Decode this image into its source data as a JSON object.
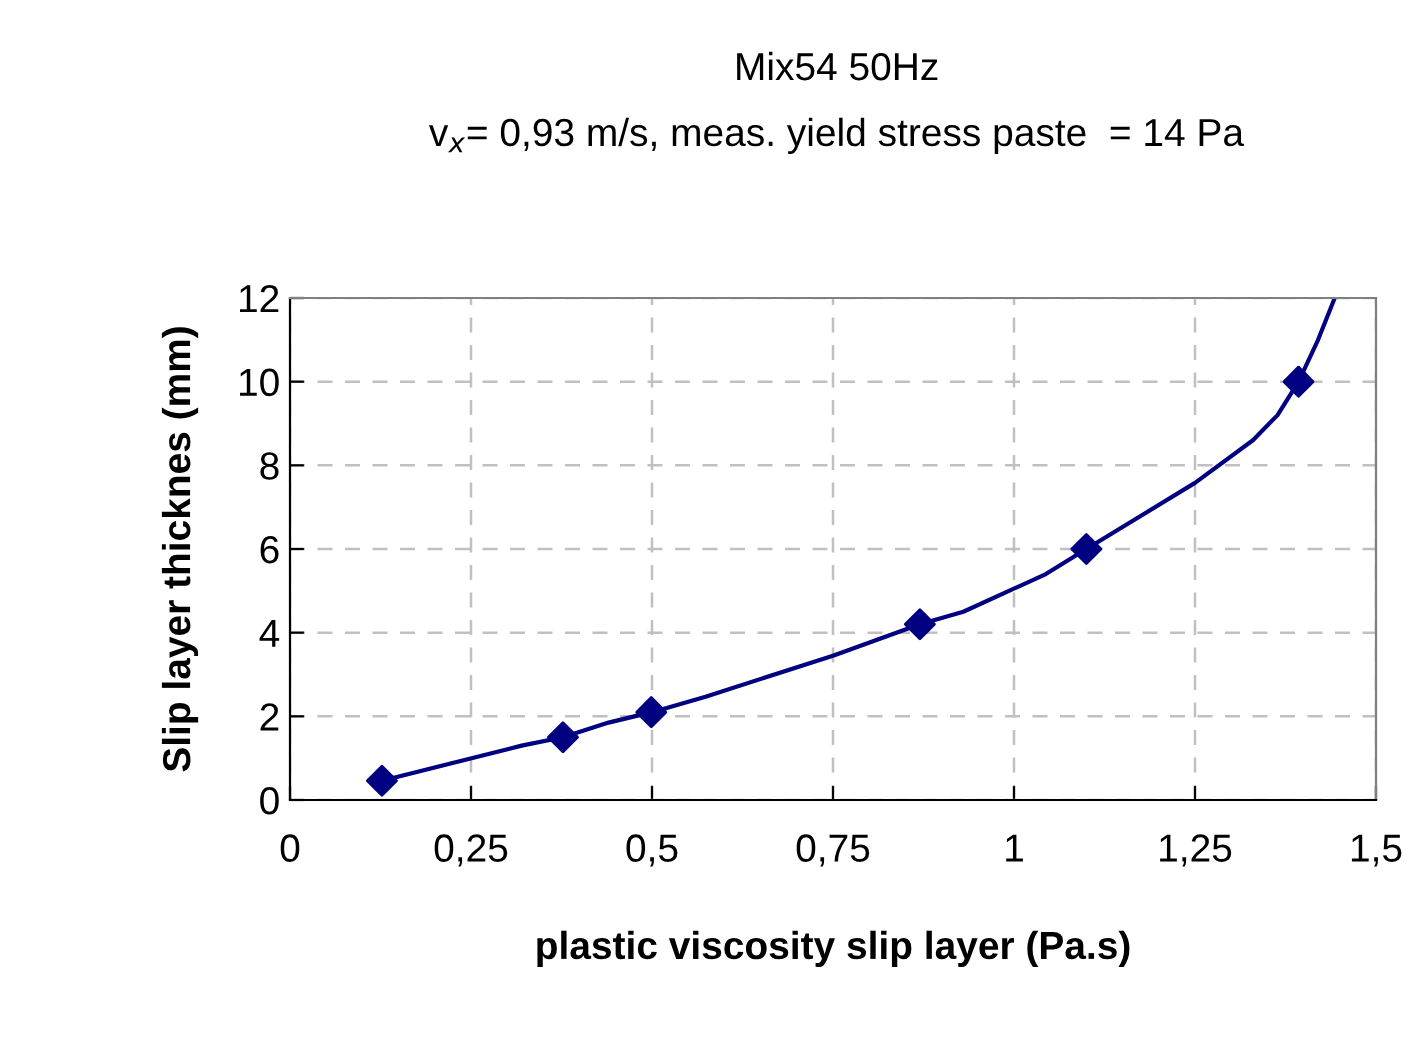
{
  "chart_data": {
    "type": "line",
    "title": "Mix54 50Hz",
    "subtitle": "v$_{x}$= 0,93 m/s, meas. yield stress paste  = 14 Pa",
    "xlabel": "plastic viscosity slip layer (Pa.s)",
    "ylabel": "Slip layer thicknes (mm)",
    "series": [
      {
        "type": "scatter",
        "color": "#000080",
        "marker": "diamond",
        "x": [
          0.127,
          0.377,
          0.499,
          0.87,
          1.1,
          1.393
        ],
        "values": [
          0.46,
          1.5,
          2.1,
          4.2,
          6.0,
          10.0
        ]
      },
      {
        "color": "#000080",
        "marker": "none",
        "x": [
          0.127,
          0.32,
          0.377,
          0.44,
          0.5,
          0.574,
          0.75,
          0.87,
          0.93,
          1.044,
          1.1,
          1.25,
          1.33,
          1.364,
          1.393,
          1.42,
          1.443
        ],
        "values": [
          0.46,
          1.3,
          1.5,
          1.85,
          2.1,
          2.47,
          3.45,
          4.2,
          4.5,
          5.4,
          6.0,
          7.58,
          8.6,
          9.2,
          10.0,
          11.0,
          12.0
        ]
      }
    ],
    "xlim": [
      0,
      1.5
    ],
    "ylim": [
      0,
      12
    ],
    "xticks": [
      0,
      {
        "value": 0.25,
        "label": "0,25"
      },
      {
        "value": 0.5,
        "label": "0,5"
      },
      {
        "value": 0.75,
        "label": "0,75"
      },
      1,
      {
        "value": 1.25,
        "label": "1,25"
      },
      {
        "value": 1.5,
        "label": "1,5"
      }
    ],
    "yticks": [
      0,
      2,
      4,
      6,
      8,
      10,
      12
    ],
    "grid": true,
    "legend": false
  }
}
